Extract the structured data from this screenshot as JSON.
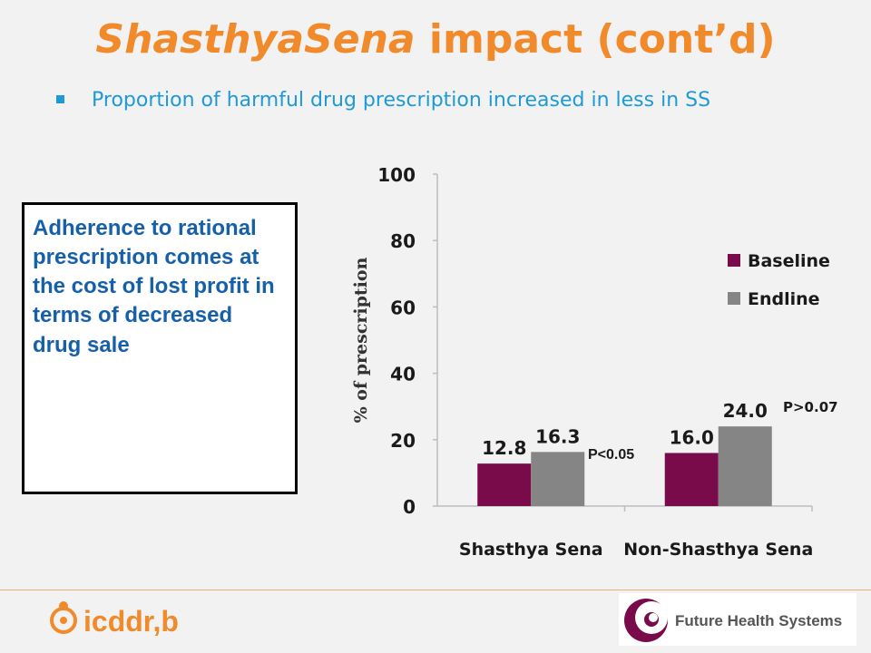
{
  "slide": {
    "title_italic": "ShasthyaSena",
    "title_rest": " impact (cont’d)",
    "bullet": "Proportion of harmful drug prescription increased in less in  SS",
    "callout": "Adherence to rational prescription comes at the cost of lost profit in terms of decreased drug sale"
  },
  "colors": {
    "title": "#f18a2a",
    "bullet": "#1e9ad6",
    "baseline": "#7a0b4a",
    "endline": "#858585"
  },
  "chart_data": {
    "type": "bar",
    "categories": [
      "Shasthya Sena",
      "Non-Shasthya Sena"
    ],
    "series": [
      {
        "name": "Baseline",
        "values": [
          12.8,
          16.0
        ],
        "labels": [
          "12.8",
          "16.0"
        ]
      },
      {
        "name": "Endline",
        "values": [
          16.3,
          24.0
        ],
        "labels": [
          "16.3",
          "24.0"
        ]
      }
    ],
    "ylabel": "% of prescription",
    "ylim": [
      0,
      100
    ],
    "yticks": [
      0,
      20,
      40,
      60,
      80,
      100
    ],
    "legend_position": "right",
    "annotations": [
      "P<0.05",
      "P>0.07"
    ]
  },
  "logos": {
    "left_text": "icddr,b",
    "right_text": "Future Health Systems"
  }
}
